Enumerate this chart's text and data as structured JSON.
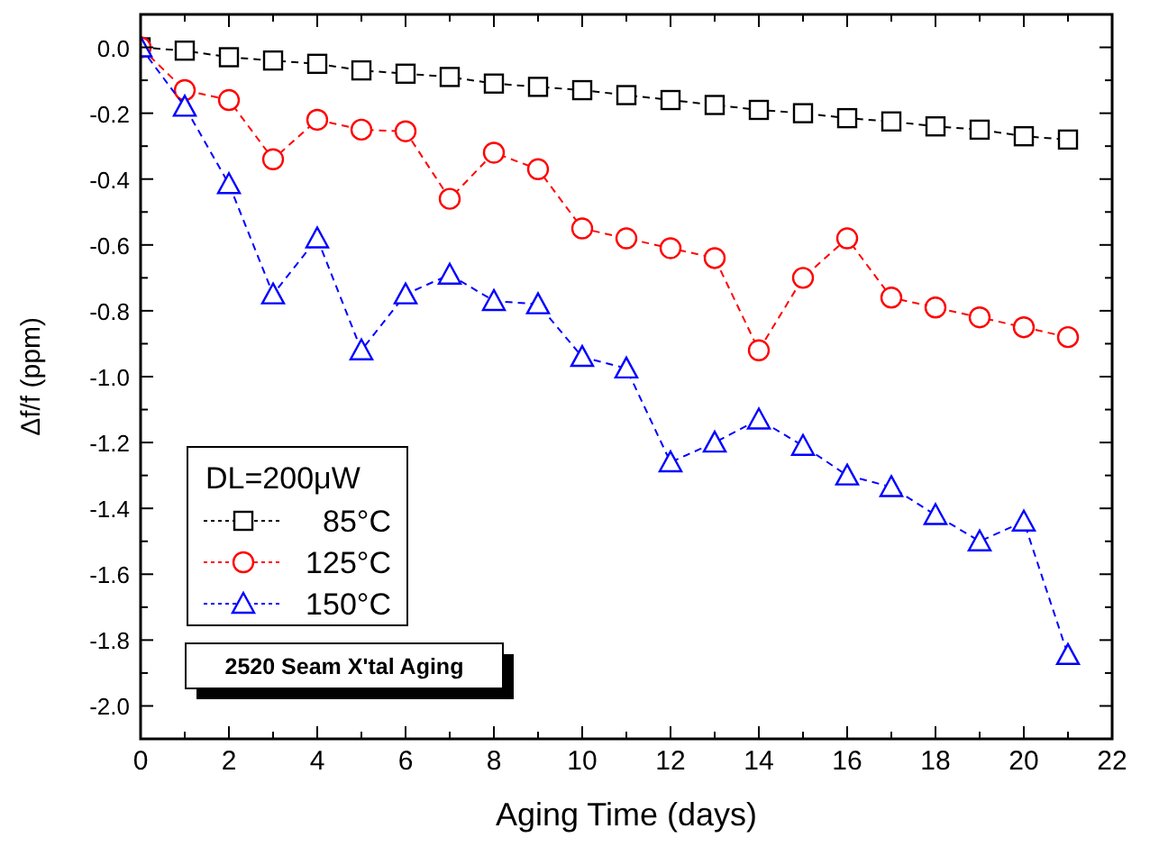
{
  "chart_data": {
    "type": "line",
    "xlabel": "Aging Time (days)",
    "ylabel": "Δf/f (ppm)",
    "legend_title": "DL=200μW",
    "legend": "bottom left",
    "line_style": "dashed",
    "grid": false,
    "annotations": [
      "2520 Seam X'tal Aging"
    ],
    "x": [
      0,
      1,
      2,
      3,
      4,
      5,
      6,
      7,
      8,
      9,
      10,
      11,
      12,
      13,
      14,
      15,
      16,
      17,
      18,
      19,
      20,
      21
    ],
    "xlim": [
      0,
      22
    ],
    "xticks": [
      0,
      {
        "value": 1,
        "label": null
      },
      2,
      {
        "value": 3,
        "label": null
      },
      4,
      {
        "value": 5,
        "label": null
      },
      6,
      {
        "value": 7,
        "label": null
      },
      8,
      {
        "value": 9,
        "label": null
      },
      10,
      {
        "value": 11,
        "label": null
      },
      12,
      {
        "value": 13,
        "label": null
      },
      14,
      {
        "value": 15,
        "label": null
      },
      16,
      {
        "value": 17,
        "label": null
      },
      18,
      {
        "value": 19,
        "label": null
      },
      20,
      {
        "value": 21,
        "label": null
      },
      22
    ],
    "ylim": [
      -2.1,
      0.1
    ],
    "yticks": [
      {
        "value": 0,
        "label": "0.0"
      },
      {
        "value": -0.1,
        "label": null
      },
      -0.2,
      {
        "value": -0.3,
        "label": null
      },
      -0.4,
      {
        "value": -0.5,
        "label": null
      },
      -0.6,
      {
        "value": -0.7,
        "label": null
      },
      -0.8,
      {
        "value": -0.9,
        "label": null
      },
      {
        "value": -1,
        "label": "-1.0"
      },
      {
        "value": -1.1,
        "label": null
      },
      -1.2,
      {
        "value": -1.3,
        "label": null
      },
      -1.4,
      {
        "value": -1.5,
        "label": null
      },
      -1.6,
      {
        "value": -1.7,
        "label": null
      },
      -1.8,
      {
        "value": -1.9,
        "label": null
      },
      {
        "value": -2,
        "label": "-2.0"
      }
    ],
    "series": [
      {
        "name": "85°C",
        "color": "#000000",
        "marker": "square",
        "values": [
          0,
          -0.01,
          -0.03,
          -0.04,
          -0.05,
          -0.07,
          -0.08,
          -0.09,
          -0.11,
          -0.12,
          -0.13,
          -0.145,
          -0.16,
          -0.175,
          -0.19,
          -0.2,
          -0.215,
          -0.225,
          -0.24,
          -0.25,
          -0.27,
          -0.28
        ]
      },
      {
        "name": "125°C",
        "color": "#ff0000",
        "marker": "circle",
        "values": [
          0,
          -0.13,
          -0.16,
          -0.34,
          -0.22,
          -0.25,
          -0.255,
          -0.46,
          -0.32,
          -0.37,
          -0.55,
          -0.58,
          -0.61,
          -0.64,
          -0.92,
          -0.7,
          -0.58,
          -0.76,
          -0.79,
          -0.82,
          -0.85,
          -0.88
        ]
      },
      {
        "name": "150°C",
        "color": "#0000ff",
        "marker": "triangle",
        "values": [
          0,
          -0.18,
          -0.415,
          -0.75,
          -0.58,
          -0.92,
          -0.75,
          -0.69,
          -0.77,
          -0.78,
          -0.94,
          -0.975,
          -1.26,
          -1.2,
          -1.13,
          -1.21,
          -1.3,
          -1.335,
          -1.42,
          -1.5,
          -1.44,
          -1.845
        ]
      }
    ]
  }
}
